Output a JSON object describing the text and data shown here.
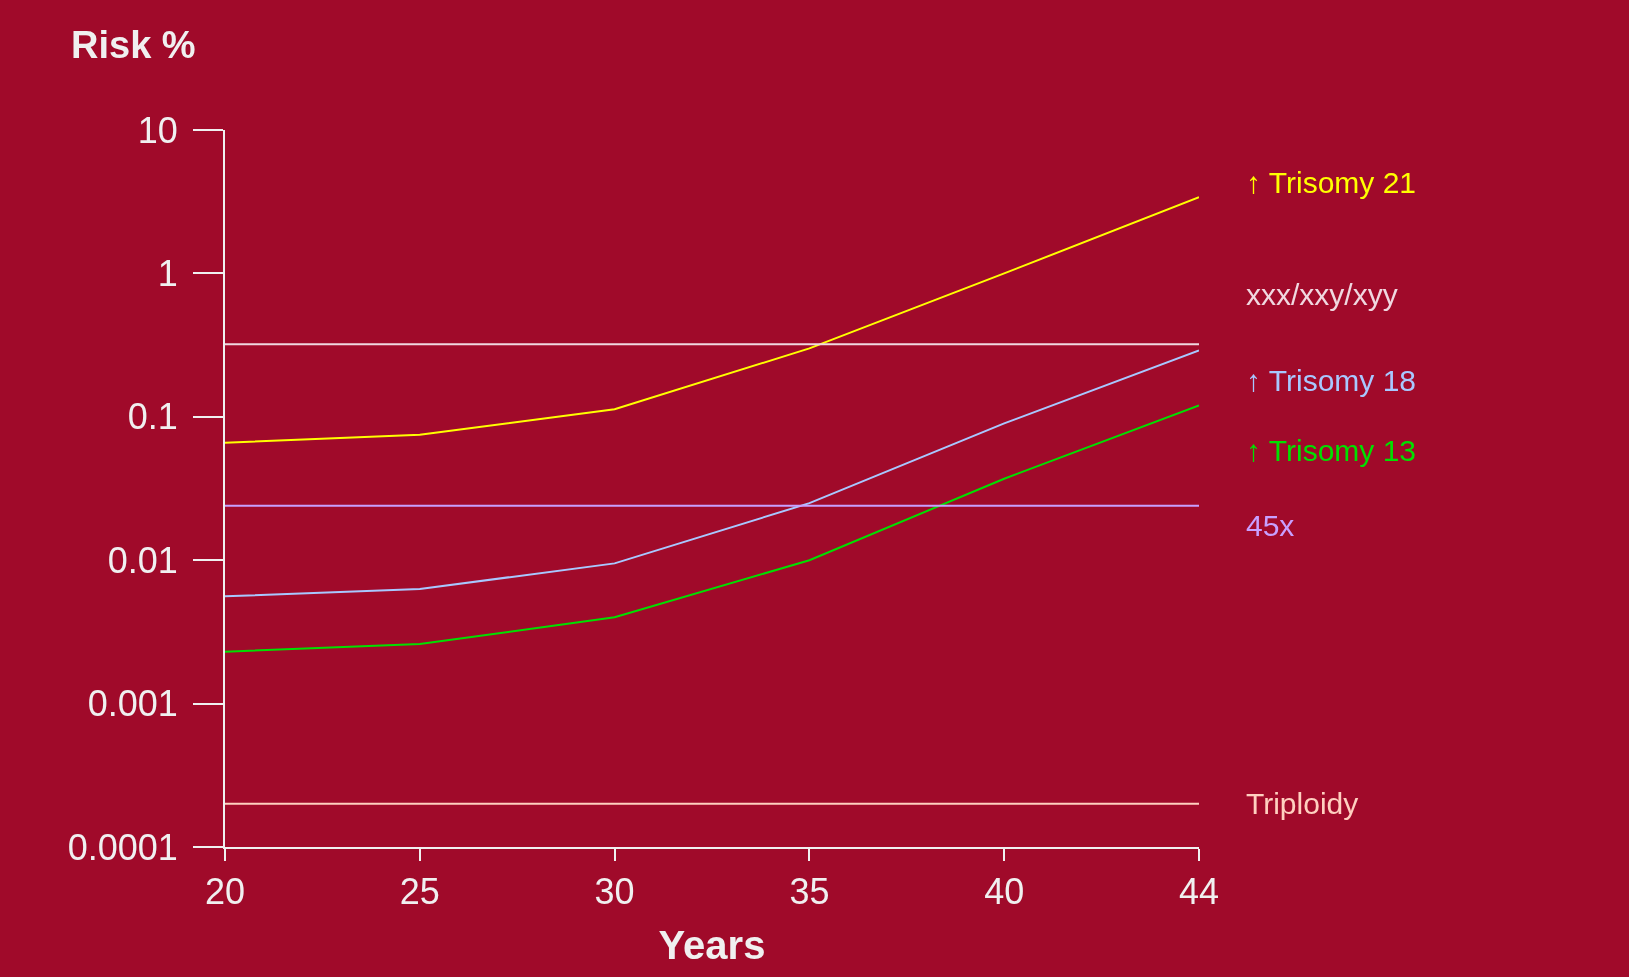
{
  "chart_data": {
    "type": "line",
    "xlabel": "Years",
    "ylabel": "Risk %",
    "categories": [
      "20",
      "25",
      "30",
      "35",
      "40",
      "44"
    ],
    "series": [
      {
        "name": "↑ Trisomy 21",
        "color": "#ffff00",
        "values": [
          0.066,
          0.075,
          0.113,
          0.3,
          1.0,
          3.4
        ]
      },
      {
        "name": "xxx/xxy/xyy",
        "color": "#f0d8e0",
        "values": [
          0.32,
          0.32,
          0.32,
          0.32,
          0.32,
          0.32
        ]
      },
      {
        "name": "↑ Trisomy 18",
        "color": "#a8c8ff",
        "values": [
          0.0056,
          0.0063,
          0.0095,
          0.025,
          0.09,
          0.29
        ]
      },
      {
        "name": "↑ Trisomy 13",
        "color": "#00e000",
        "values": [
          0.0023,
          0.0026,
          0.004,
          0.01,
          0.037,
          0.12
        ]
      },
      {
        "name": "45x",
        "color": "#c8a0ff",
        "values": [
          0.024,
          0.024,
          0.024,
          0.024,
          0.024,
          0.024
        ]
      },
      {
        "name": "Triploidy",
        "color": "#ffd0c0",
        "values": [
          0.0002,
          0.0002,
          0.0002,
          0.0002,
          0.0002,
          0.0002
        ]
      }
    ],
    "log": "y",
    "ylim": [
      0.0001,
      10
    ],
    "yticks": [
      0.0001,
      0.001,
      0.01,
      0.1,
      1,
      10
    ],
    "grid": false,
    "legend": false,
    "marker": "none",
    "line_style": "solid"
  }
}
